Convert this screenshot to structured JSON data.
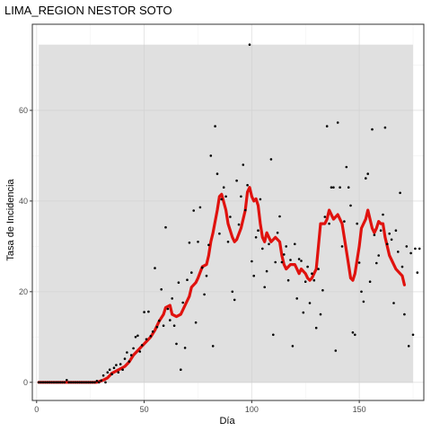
{
  "chart_data": {
    "type": "scatter",
    "title": "LIMA_REGION NESTOR SOTO",
    "xlabel": "Día",
    "ylabel": "Tasa de Incidencia",
    "xlim": [
      -2,
      180
    ],
    "ylim": [
      -4,
      79
    ],
    "x_ticks": [
      0,
      50,
      100,
      150
    ],
    "y_ticks": [
      0,
      20,
      40,
      60
    ],
    "grid": true,
    "legend": "none",
    "colors": {
      "panel_border": "#333333",
      "grid_major": "#e5e5e5",
      "grid_minor": "#f2f2f2",
      "band": "#e0e0e0",
      "points": "#000000",
      "trend": "#e0120e"
    },
    "band": {
      "x_start": 1,
      "x_end": 175,
      "y_min": 0,
      "y_max": 74.5
    },
    "points": [
      [
        1,
        0
      ],
      [
        2,
        0
      ],
      [
        3,
        0
      ],
      [
        4,
        0
      ],
      [
        5,
        0
      ],
      [
        6,
        0
      ],
      [
        7,
        0
      ],
      [
        8,
        0
      ],
      [
        9,
        0
      ],
      [
        10,
        0
      ],
      [
        11,
        0
      ],
      [
        12,
        0
      ],
      [
        13,
        0
      ],
      [
        14,
        0.5
      ],
      [
        15,
        0
      ],
      [
        16,
        0
      ],
      [
        17,
        0
      ],
      [
        18,
        0
      ],
      [
        19,
        0
      ],
      [
        20,
        0
      ],
      [
        21,
        0
      ],
      [
        22,
        0
      ],
      [
        23,
        0
      ],
      [
        24,
        0
      ],
      [
        25,
        0
      ],
      [
        26,
        0
      ],
      [
        27,
        0
      ],
      [
        28,
        0.3
      ],
      [
        29,
        0
      ],
      [
        30,
        0.4
      ],
      [
        31,
        1.5
      ],
      [
        32,
        0
      ],
      [
        33,
        2.2
      ],
      [
        34,
        2.8
      ],
      [
        35,
        1.8
      ],
      [
        36,
        3.2
      ],
      [
        37,
        3.8
      ],
      [
        38,
        2.2
      ],
      [
        39,
        4
      ],
      [
        40,
        2.8
      ],
      [
        41,
        5.2
      ],
      [
        42,
        6.6
      ],
      [
        43,
        4.6
      ],
      [
        44,
        6
      ],
      [
        45,
        7.5
      ],
      [
        46,
        10
      ],
      [
        47,
        10.3
      ],
      [
        48,
        6.8
      ],
      [
        49,
        8.2
      ],
      [
        50,
        15.5
      ],
      [
        51,
        9.5
      ],
      [
        52,
        15.6
      ],
      [
        53,
        10.2
      ],
      [
        54,
        11.2
      ],
      [
        55,
        25.2
      ],
      [
        56,
        12.2
      ],
      [
        57,
        13.6
      ],
      [
        58,
        20.5
      ],
      [
        59,
        12.5
      ],
      [
        60,
        34.2
      ],
      [
        61,
        16.2
      ],
      [
        62,
        13.7
      ],
      [
        63,
        18.5
      ],
      [
        64,
        12.5
      ],
      [
        65,
        8.5
      ],
      [
        66,
        22
      ],
      [
        67,
        2.8
      ],
      [
        68,
        17.6
      ],
      [
        69,
        7.6
      ],
      [
        70,
        22.6
      ],
      [
        71,
        30.8
      ],
      [
        72,
        24.2
      ],
      [
        73,
        37.9
      ],
      [
        74,
        13.2
      ],
      [
        75,
        31
      ],
      [
        76,
        38.6
      ],
      [
        77,
        25.3
      ],
      [
        78,
        19.4
      ],
      [
        79,
        23.5
      ],
      [
        80,
        30.3
      ],
      [
        81,
        50
      ],
      [
        82,
        8
      ],
      [
        83,
        56.5
      ],
      [
        84,
        46
      ],
      [
        85,
        32.8
      ],
      [
        86,
        40.4
      ],
      [
        87,
        43
      ],
      [
        88,
        41
      ],
      [
        89,
        31
      ],
      [
        90,
        36.5
      ],
      [
        91,
        20
      ],
      [
        92,
        18.2
      ],
      [
        93,
        44.5
      ],
      [
        94,
        34.8
      ],
      [
        95,
        41
      ],
      [
        96,
        48
      ],
      [
        97,
        38
      ],
      [
        98,
        43.5
      ],
      [
        99,
        74.5
      ],
      [
        100,
        26.7
      ],
      [
        101,
        23.5
      ],
      [
        102,
        32
      ],
      [
        103,
        33.5
      ],
      [
        104,
        40.4
      ],
      [
        105,
        29.5
      ],
      [
        106,
        21
      ],
      [
        107,
        24.5
      ],
      [
        108,
        30.5
      ],
      [
        109,
        49.2
      ],
      [
        110,
        10.5
      ],
      [
        111,
        26.5
      ],
      [
        112,
        33
      ],
      [
        113,
        36.6
      ],
      [
        114,
        26.5
      ],
      [
        115,
        28.2
      ],
      [
        116,
        30
      ],
      [
        117,
        22.5
      ],
      [
        118,
        27
      ],
      [
        119,
        8
      ],
      [
        120,
        30.5
      ],
      [
        121,
        18.5
      ],
      [
        122,
        27.2
      ],
      [
        123,
        26.8
      ],
      [
        124,
        15.4
      ],
      [
        125,
        22.2
      ],
      [
        126,
        25.5
      ],
      [
        127,
        17.5
      ],
      [
        128,
        24
      ],
      [
        129,
        22.5
      ],
      [
        130,
        12
      ],
      [
        131,
        25
      ],
      [
        132,
        15
      ],
      [
        133,
        20.3
      ],
      [
        134,
        36.5
      ],
      [
        135,
        56.5
      ],
      [
        136,
        35
      ],
      [
        137,
        43
      ],
      [
        138,
        43
      ],
      [
        139,
        7
      ],
      [
        140,
        57.3
      ],
      [
        141,
        43
      ],
      [
        142,
        30
      ],
      [
        143,
        35.5
      ],
      [
        144,
        47.5
      ],
      [
        145,
        43
      ],
      [
        146,
        39
      ],
      [
        147,
        11
      ],
      [
        148,
        10.5
      ],
      [
        149,
        35
      ],
      [
        150,
        26.4
      ],
      [
        151,
        20
      ],
      [
        152,
        17.8
      ],
      [
        153,
        45
      ],
      [
        154,
        46
      ],
      [
        155,
        22.2
      ],
      [
        156,
        55.8
      ],
      [
        157,
        32.5
      ],
      [
        158,
        26.3
      ],
      [
        159,
        28
      ],
      [
        160,
        33.5
      ],
      [
        161,
        37
      ],
      [
        162,
        56.2
      ],
      [
        163,
        30.5
      ],
      [
        164,
        32.8
      ],
      [
        165,
        31.5
      ],
      [
        166,
        17.5
      ],
      [
        167,
        33.5
      ],
      [
        168,
        28.8
      ],
      [
        169,
        41.8
      ],
      [
        170,
        25.5
      ],
      [
        171,
        15
      ],
      [
        172,
        30
      ],
      [
        173,
        8
      ],
      [
        174,
        28.5
      ],
      [
        175,
        10.5
      ],
      [
        176,
        29.5
      ],
      [
        177,
        24.2
      ],
      [
        178,
        29.5
      ]
    ],
    "trend": [
      [
        1,
        0
      ],
      [
        28,
        0
      ],
      [
        31,
        0.5
      ],
      [
        33,
        1
      ],
      [
        35,
        2
      ],
      [
        37,
        2.5
      ],
      [
        39,
        3
      ],
      [
        41,
        3.5
      ],
      [
        43,
        4.5
      ],
      [
        45,
        6
      ],
      [
        47,
        7
      ],
      [
        49,
        8
      ],
      [
        51,
        9
      ],
      [
        53,
        10
      ],
      [
        55,
        11.5
      ],
      [
        57,
        13.5
      ],
      [
        59,
        15
      ],
      [
        60,
        16.5
      ],
      [
        62,
        17
      ],
      [
        63,
        15
      ],
      [
        65,
        14.5
      ],
      [
        67,
        15
      ],
      [
        69,
        17
      ],
      [
        71,
        19
      ],
      [
        72,
        21
      ],
      [
        74,
        22
      ],
      [
        75,
        23
      ],
      [
        77,
        25.5
      ],
      [
        79,
        26
      ],
      [
        80,
        28
      ],
      [
        81,
        31
      ],
      [
        82,
        33
      ],
      [
        84,
        38
      ],
      [
        85,
        41
      ],
      [
        86,
        41.5
      ],
      [
        88,
        38
      ],
      [
        89,
        35
      ],
      [
        91,
        32
      ],
      [
        92,
        31
      ],
      [
        93,
        31.5
      ],
      [
        95,
        34
      ],
      [
        97,
        38
      ],
      [
        98,
        42
      ],
      [
        99,
        43
      ],
      [
        100,
        41
      ],
      [
        101,
        40
      ],
      [
        102,
        40.5
      ],
      [
        103,
        39
      ],
      [
        104,
        35
      ],
      [
        105,
        32
      ],
      [
        106,
        31
      ],
      [
        107,
        33
      ],
      [
        108,
        32
      ],
      [
        109,
        31
      ],
      [
        111,
        32
      ],
      [
        113,
        31
      ],
      [
        114,
        28
      ],
      [
        115,
        26
      ],
      [
        116,
        25
      ],
      [
        118,
        26
      ],
      [
        120,
        26
      ],
      [
        121,
        25
      ],
      [
        122,
        24
      ],
      [
        123,
        25
      ],
      [
        125,
        24
      ],
      [
        126,
        23
      ],
      [
        127,
        22.5
      ],
      [
        128,
        23
      ],
      [
        130,
        25
      ],
      [
        131,
        30
      ],
      [
        132,
        35
      ],
      [
        134,
        35
      ],
      [
        135,
        36
      ],
      [
        136,
        38
      ],
      [
        137,
        37
      ],
      [
        138,
        36
      ],
      [
        140,
        37
      ],
      [
        141,
        36
      ],
      [
        142,
        35
      ],
      [
        143,
        32
      ],
      [
        144,
        29
      ],
      [
        145,
        26
      ],
      [
        146,
        23
      ],
      [
        147,
        22.5
      ],
      [
        148,
        24
      ],
      [
        150,
        30
      ],
      [
        151,
        34
      ],
      [
        152,
        35
      ],
      [
        153,
        36
      ],
      [
        154,
        38
      ],
      [
        155,
        36
      ],
      [
        156,
        34
      ],
      [
        157,
        33
      ],
      [
        158,
        34
      ],
      [
        159,
        35.5
      ],
      [
        160,
        35
      ],
      [
        161,
        35
      ],
      [
        162,
        32
      ],
      [
        163,
        30
      ],
      [
        164,
        28
      ],
      [
        165,
        27
      ],
      [
        166,
        26
      ],
      [
        167,
        25
      ],
      [
        169,
        24
      ],
      [
        170,
        23.5
      ],
      [
        171,
        21.5
      ]
    ]
  }
}
